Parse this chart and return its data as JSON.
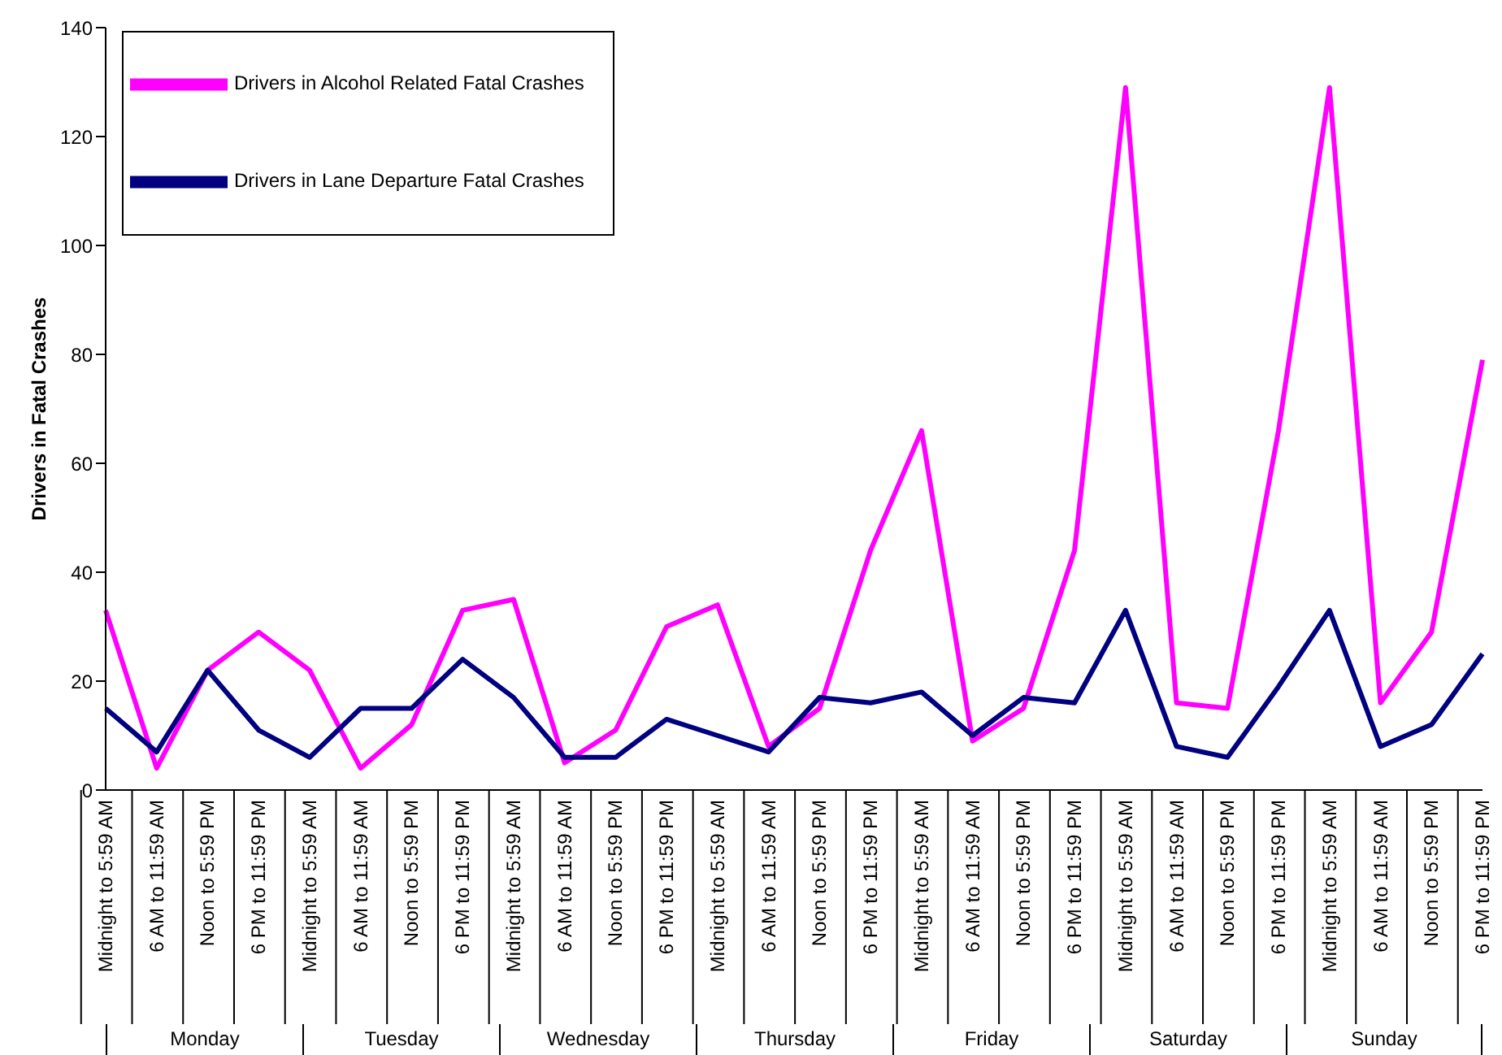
{
  "chart_data": {
    "type": "line",
    "ylabel": "Drivers in Fatal Crashes",
    "categories": [
      "Midnight to 5:59 AM",
      "6 AM to 11:59 AM",
      "Noon to 5:59 PM",
      "6 PM to 11:59 PM",
      "Midnight to 5:59 AM",
      "6 AM to 11:59 AM",
      "Noon to 5:59 PM",
      "6 PM to 11:59 PM",
      "Midnight to 5:59 AM",
      "6 AM to 11:59 AM",
      "Noon to 5:59 PM",
      "6 PM to 11:59 PM",
      "Midnight to 5:59 AM",
      "6 AM to 11:59 AM",
      "Noon to 5:59 PM",
      "6 PM to 11:59 PM",
      "Midnight to 5:59 AM",
      "6 AM to 11:59 AM",
      "Noon to 5:59 PM",
      "6 PM to 11:59 PM",
      "Midnight to 5:59 AM",
      "6 AM to 11:59 AM",
      "Noon to 5:59 PM",
      "6 PM to 11:59 PM",
      "Midnight to 5:59 AM",
      "6 AM to 11:59 AM",
      "Noon to 5:59 PM",
      "6 PM to 11:59 PM"
    ],
    "annotations": [
      "Monday",
      "Tuesday",
      "Wednesday",
      "Thursday",
      "Friday",
      "Saturday",
      "Sunday"
    ],
    "series": [
      {
        "name": "Drivers in Alcohol Related Fatal Crashes",
        "color": "#ff00ff",
        "values": [
          33,
          4,
          22,
          29,
          22,
          4,
          12,
          33,
          35,
          5,
          11,
          30,
          34,
          8,
          15,
          44,
          66,
          9,
          15,
          44,
          129,
          16,
          15,
          66,
          129,
          16,
          29,
          79
        ]
      },
      {
        "name": "Drivers in Lane Departure Fatal Crashes",
        "color": "#000080",
        "values": [
          15,
          7,
          22,
          11,
          6,
          15,
          15,
          24,
          17,
          6,
          6,
          13,
          10,
          7,
          17,
          16,
          18,
          10,
          17,
          16,
          33,
          8,
          6,
          19,
          33,
          8,
          12,
          25
        ]
      }
    ],
    "ylim": [
      0,
      140
    ],
    "yticks": [
      0,
      20,
      40,
      60,
      80,
      100,
      120,
      140
    ],
    "grid": false,
    "legend": "top left",
    "marker": "none",
    "line_style": "solid"
  }
}
